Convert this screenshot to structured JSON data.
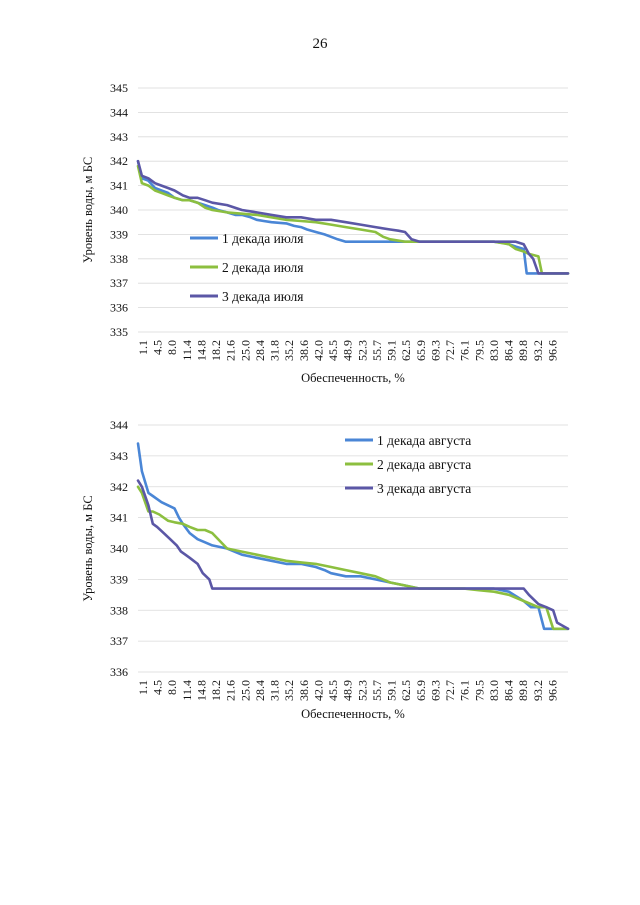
{
  "page_number": "26",
  "chart_data": [
    {
      "type": "line",
      "ylabel": "Уровень воды, м БС",
      "xlabel": "Обеспеченность, %",
      "ylim": [
        335,
        345
      ],
      "yticks": [
        335,
        336,
        337,
        338,
        339,
        340,
        341,
        342,
        343,
        344,
        345
      ],
      "x_tick_labels": [
        "1.1",
        "4.5",
        "8.0",
        "11.4",
        "14.8",
        "18.2",
        "21.6",
        "25.0",
        "28.4",
        "31.8",
        "35.2",
        "38.6",
        "42.0",
        "45.5",
        "48.9",
        "52.3",
        "55.7",
        "59.1",
        "62.5",
        "65.9",
        "69.3",
        "72.7",
        "76.1",
        "79.5",
        "83.0",
        "86.4",
        "89.8",
        "93.2",
        "96.6"
      ],
      "xlim": [
        1.1,
        100
      ],
      "grid": "horizontal",
      "legend_position": "left-center",
      "series": [
        {
          "name": "1 декада июля",
          "color": "#4a86d6",
          "x": [
            1.1,
            2.0,
            3.5,
            5.0,
            6.5,
            8.0,
            9.5,
            11.4,
            13.0,
            14.8,
            16.5,
            18.2,
            19.5,
            21.6,
            23.5,
            25.0,
            27.0,
            28.4,
            30.0,
            31.8,
            35.2,
            37.0,
            38.6,
            40.0,
            42.0,
            44.0,
            45.5,
            47.0,
            48.9,
            52.3,
            55.7,
            59.1,
            62.5,
            65.9,
            69.3,
            72.7,
            76.1,
            79.5,
            83.0,
            85.0,
            86.4,
            88.0,
            89.8,
            90.5,
            91.5,
            93.2,
            96.6,
            100
          ],
          "values": [
            342.0,
            341.3,
            341.2,
            340.9,
            340.8,
            340.7,
            340.5,
            340.4,
            340.4,
            340.3,
            340.2,
            340.1,
            340.0,
            339.9,
            339.8,
            339.8,
            339.7,
            339.6,
            339.55,
            339.5,
            339.45,
            339.35,
            339.3,
            339.2,
            339.1,
            339.0,
            338.9,
            338.8,
            338.7,
            338.7,
            338.7,
            338.7,
            338.7,
            338.7,
            338.7,
            338.7,
            338.7,
            338.7,
            338.7,
            338.65,
            338.6,
            338.5,
            338.4,
            337.4,
            337.4,
            337.4,
            337.4,
            337.4
          ]
        },
        {
          "name": "2 декада июля",
          "color": "#8cbf3f",
          "x": [
            1.1,
            2.0,
            3.5,
            5.0,
            6.5,
            8.0,
            9.5,
            11.4,
            13.0,
            14.8,
            16.5,
            18.2,
            21.6,
            25.0,
            28.4,
            31.8,
            35.2,
            38.6,
            42.0,
            45.5,
            48.9,
            52.3,
            55.7,
            57.5,
            59.1,
            62.5,
            65.9,
            69.3,
            72.7,
            76.1,
            79.5,
            83.0,
            86.4,
            88.0,
            89.8,
            91.0,
            93.2,
            94.0,
            96.6,
            100
          ],
          "values": [
            341.8,
            341.1,
            341.0,
            340.8,
            340.7,
            340.6,
            340.5,
            340.4,
            340.4,
            340.3,
            340.1,
            340.0,
            339.9,
            339.85,
            339.8,
            339.7,
            339.6,
            339.55,
            339.5,
            339.4,
            339.3,
            339.2,
            339.1,
            338.9,
            338.8,
            338.7,
            338.7,
            338.7,
            338.7,
            338.7,
            338.7,
            338.7,
            338.6,
            338.4,
            338.3,
            338.2,
            338.1,
            337.4,
            337.4,
            337.4
          ]
        },
        {
          "name": "3 декада июля",
          "color": "#5b57a6",
          "x": [
            1.1,
            2.0,
            3.5,
            5.0,
            6.5,
            8.0,
            9.5,
            11.4,
            13.0,
            14.8,
            16.5,
            18.2,
            21.6,
            25.0,
            28.4,
            31.8,
            35.2,
            38.6,
            42.0,
            45.5,
            48.9,
            52.3,
            55.7,
            59.1,
            61.0,
            62.5,
            64.0,
            65.9,
            69.3,
            72.7,
            76.1,
            79.5,
            83.0,
            86.4,
            88.0,
            89.8,
            91.0,
            92.0,
            93.2,
            96.6,
            100
          ],
          "values": [
            342.0,
            341.4,
            341.3,
            341.1,
            341.0,
            340.9,
            340.8,
            340.6,
            340.5,
            340.5,
            340.4,
            340.3,
            340.2,
            340.0,
            339.9,
            339.8,
            339.7,
            339.7,
            339.6,
            339.6,
            339.5,
            339.4,
            339.3,
            339.2,
            339.15,
            339.1,
            338.8,
            338.7,
            338.7,
            338.7,
            338.7,
            338.7,
            338.7,
            338.7,
            338.7,
            338.6,
            338.2,
            338.0,
            337.4,
            337.4,
            337.4
          ]
        }
      ]
    },
    {
      "type": "line",
      "ylabel": "Уровень воды, м БС",
      "xlabel": "Обеспеченность, %",
      "ylim": [
        336,
        344
      ],
      "yticks": [
        336,
        337,
        338,
        339,
        340,
        341,
        342,
        343,
        344
      ],
      "x_tick_labels": [
        "1.1",
        "4.5",
        "8.0",
        "11.4",
        "14.8",
        "18.2",
        "21.6",
        "25.0",
        "28.4",
        "31.8",
        "35.2",
        "38.6",
        "42.0",
        "45.5",
        "48.9",
        "52.3",
        "55.7",
        "59.1",
        "62.5",
        "65.9",
        "69.3",
        "72.7",
        "76.1",
        "79.5",
        "83.0",
        "86.4",
        "89.8",
        "93.2",
        "96.6"
      ],
      "xlim": [
        1.1,
        100
      ],
      "grid": "horizontal",
      "legend_position": "top-right",
      "series": [
        {
          "name": "1 декада августа",
          "color": "#4a86d6",
          "x": [
            1.1,
            2.0,
            3.5,
            4.5,
            5.5,
            6.5,
            8.0,
            9.5,
            10.5,
            11.4,
            13.0,
            14.8,
            16.5,
            18.2,
            21.6,
            25.0,
            28.4,
            31.8,
            35.2,
            38.6,
            42.0,
            44.0,
            45.5,
            48.9,
            52.3,
            55.7,
            59.1,
            62.5,
            65.9,
            69.3,
            72.7,
            76.1,
            79.5,
            83.0,
            86.4,
            89.8,
            91.5,
            93.2,
            94.5,
            95.5,
            96.6,
            98.0,
            100
          ],
          "values": [
            343.4,
            342.5,
            341.8,
            341.7,
            341.6,
            341.5,
            341.4,
            341.3,
            341.0,
            340.8,
            340.5,
            340.3,
            340.2,
            340.1,
            340.0,
            339.8,
            339.7,
            339.6,
            339.5,
            339.5,
            339.4,
            339.3,
            339.2,
            339.1,
            339.1,
            339.0,
            338.9,
            338.8,
            338.7,
            338.7,
            338.7,
            338.7,
            338.7,
            338.7,
            338.6,
            338.3,
            338.1,
            338.1,
            337.4,
            337.4,
            337.4,
            337.4,
            337.4
          ]
        },
        {
          "name": "2 декада августа",
          "color": "#8cbf3f",
          "x": [
            1.1,
            2.0,
            3.5,
            4.5,
            6.0,
            8.0,
            9.5,
            11.4,
            13.0,
            14.8,
            16.5,
            18.2,
            21.6,
            25.0,
            28.4,
            31.8,
            35.2,
            38.6,
            42.0,
            45.5,
            48.9,
            52.3,
            55.7,
            59.1,
            62.5,
            65.9,
            69.3,
            72.7,
            76.1,
            79.5,
            83.0,
            86.4,
            89.8,
            93.2,
            95.0,
            96.6,
            98.0,
            100
          ],
          "values": [
            342.0,
            341.8,
            341.2,
            341.2,
            341.1,
            340.9,
            340.85,
            340.8,
            340.7,
            340.6,
            340.6,
            340.5,
            340.0,
            339.9,
            339.8,
            339.7,
            339.6,
            339.55,
            339.5,
            339.4,
            339.3,
            339.2,
            339.1,
            338.9,
            338.8,
            338.7,
            338.7,
            338.7,
            338.7,
            338.65,
            338.6,
            338.5,
            338.3,
            338.1,
            338.1,
            337.4,
            337.4,
            337.4
          ]
        },
        {
          "name": "3 декада августа",
          "color": "#5b57a6",
          "x": [
            1.1,
            2.0,
            3.5,
            4.5,
            5.5,
            7.0,
            8.5,
            10.0,
            11.0,
            12.0,
            13.0,
            14.8,
            16.0,
            17.5,
            18.2,
            21.6,
            25.0,
            28.4,
            31.8,
            35.2,
            38.6,
            42.0,
            45.5,
            48.9,
            52.3,
            55.7,
            59.1,
            62.5,
            65.9,
            69.3,
            72.7,
            76.1,
            79.5,
            83.0,
            86.4,
            89.8,
            91.0,
            93.2,
            95.0,
            96.6,
            97.5,
            100
          ],
          "values": [
            342.2,
            342.0,
            341.4,
            340.8,
            340.7,
            340.5,
            340.3,
            340.1,
            339.9,
            339.8,
            339.7,
            339.5,
            339.2,
            339.0,
            338.7,
            338.7,
            338.7,
            338.7,
            338.7,
            338.7,
            338.7,
            338.7,
            338.7,
            338.7,
            338.7,
            338.7,
            338.7,
            338.7,
            338.7,
            338.7,
            338.7,
            338.7,
            338.7,
            338.7,
            338.7,
            338.7,
            338.5,
            338.2,
            338.1,
            338.0,
            337.6,
            337.4
          ]
        }
      ]
    }
  ]
}
